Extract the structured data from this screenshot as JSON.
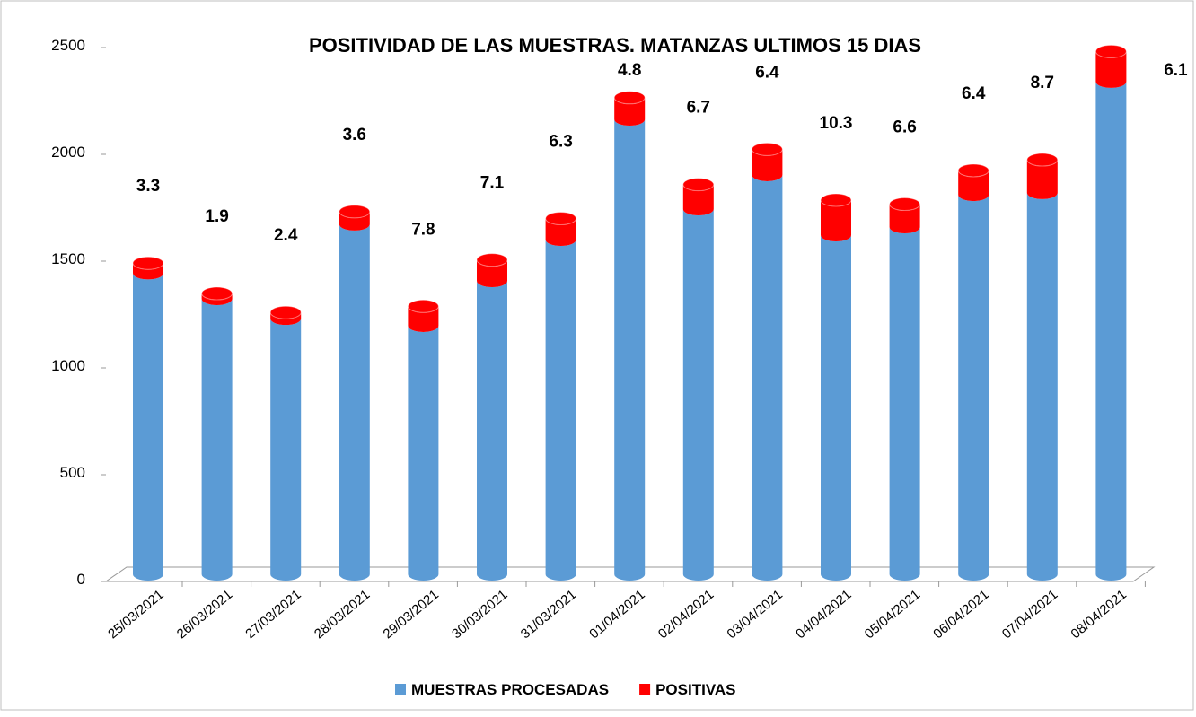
{
  "chart_data": {
    "type": "bar3d_stacked",
    "title": "POSITIVIDAD DE LAS MUESTRAS. MATANZAS ULTIMOS 15 DIAS",
    "categories": [
      "25/03/2021",
      "26/03/2021",
      "27/03/2021",
      "28/03/2021",
      "29/03/2021",
      "30/03/2021",
      "31/03/2021",
      "01/04/2021",
      "02/04/2021",
      "03/04/2021",
      "04/04/2021",
      "05/04/2021",
      "06/04/2021",
      "07/04/2021",
      "08/04/2021"
    ],
    "series": [
      {
        "name": "MUESTRAS PROCESADAS",
        "color": "#5b9bd5",
        "values": [
          1410,
          1290,
          1197,
          1639,
          1164,
          1374,
          1567,
          2130,
          1710,
          1870,
          1588,
          1626,
          1777,
          1786,
          2307
        ]
      },
      {
        "name": "POSITIVAS",
        "color": "#ff0000",
        "values": [
          47,
          25,
          29,
          59,
          91,
          98,
          99,
          102,
          115,
          120,
          164,
          107,
          114,
          155,
          141
        ]
      }
    ],
    "positivity": [
      3.3,
      1.9,
      2.4,
      3.6,
      7.8,
      7.1,
      6.3,
      4.8,
      6.7,
      6.4,
      10.3,
      6.6,
      6.4,
      8.7,
      6.1
    ],
    "ylim": [
      0,
      2500
    ],
    "yticks": [
      0,
      500,
      1000,
      1500,
      2000,
      2500
    ],
    "legend": "bottom"
  }
}
